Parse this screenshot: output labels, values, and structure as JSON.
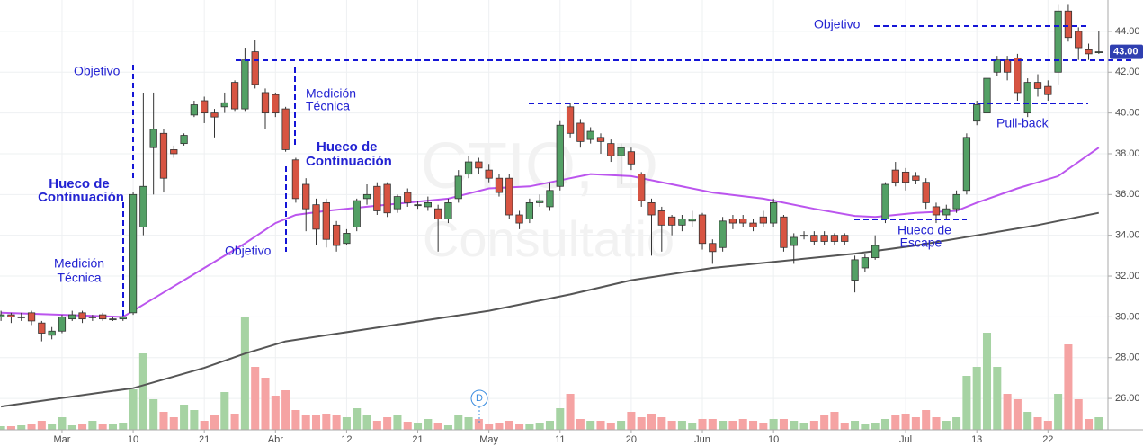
{
  "chart_data": {
    "type": "candlestick",
    "xlim": [
      -0.1,
      108.9
    ],
    "ylim": [
      24.46,
      45.54
    ],
    "grid": true,
    "xticks": [
      {
        "value": 6,
        "label": "Mar"
      },
      {
        "value": 13,
        "label": "10"
      },
      {
        "value": 20,
        "label": "21"
      },
      {
        "value": 27,
        "label": "Abr"
      },
      {
        "value": 34,
        "label": "12"
      },
      {
        "value": 41,
        "label": "21"
      },
      {
        "value": 48,
        "label": "May"
      },
      {
        "value": 55,
        "label": "11"
      },
      {
        "value": 62,
        "label": "20"
      },
      {
        "value": 69,
        "label": "Jun"
      },
      {
        "value": 76,
        "label": "10"
      },
      {
        "value": 89,
        "label": "Jul"
      },
      {
        "value": 96,
        "label": "13"
      },
      {
        "value": 103,
        "label": "22"
      }
    ],
    "yticks": [
      {
        "value": 26,
        "label": "26.00"
      },
      {
        "value": 28,
        "label": "28.00"
      },
      {
        "value": 30,
        "label": "30.00"
      },
      {
        "value": 32,
        "label": "32.00"
      },
      {
        "value": 34,
        "label": "34.00"
      },
      {
        "value": 36,
        "label": "36.00"
      },
      {
        "value": 38,
        "label": "38.00"
      },
      {
        "value": 40,
        "label": "40.00"
      },
      {
        "value": 42,
        "label": "42.00"
      },
      {
        "value": 44,
        "label": "44.00"
      }
    ],
    "last_price_label": "43.00",
    "up_color": "#53a065",
    "down_color": "#d75442",
    "volume_up_color": "#a6d3a3",
    "volume_down_color": "#f5a3a3",
    "open": [
      30.0,
      30.1,
      30.0,
      30.2,
      29.7,
      29.1,
      29.3,
      29.9,
      30.2,
      30.0,
      30.1,
      29.9,
      29.9,
      30.2,
      34.4,
      38.3,
      39.0,
      38.2,
      38.5,
      39.9,
      40.6,
      40.0,
      40.3,
      41.5,
      40.2,
      43.0,
      41.0,
      40.9,
      40.2,
      37.7,
      36.5,
      35.5,
      35.6,
      34.5,
      33.6,
      34.4,
      35.8,
      36.4,
      36.5,
      35.3,
      36.1,
      35.5,
      35.4,
      35.3,
      34.8,
      35.8,
      37.0,
      37.6,
      37.2,
      36.8,
      36.8,
      35.0,
      34.8,
      35.6,
      35.4,
      36.4,
      40.3,
      39.5,
      38.7,
      38.8,
      38.5,
      37.9,
      38.1,
      37.0,
      35.6,
      35.2,
      34.9,
      34.5,
      34.7,
      35.0,
      33.6,
      33.4,
      34.8,
      34.8,
      34.6,
      34.9,
      34.6,
      34.9,
      33.5,
      34.0,
      34.0,
      34.0,
      34.0,
      34.0,
      31.8,
      32.4,
      32.9,
      34.8,
      37.2,
      37.1,
      36.9,
      36.6,
      35.4,
      35.0,
      35.3,
      36.2,
      39.6,
      40.0,
      42.0,
      42.6,
      42.7,
      40.0,
      41.5,
      41.3,
      42.0,
      45.0,
      44.0,
      43.1,
      43.0
    ],
    "high": [
      30.3,
      30.2,
      30.2,
      30.3,
      29.8,
      29.5,
      30.1,
      30.3,
      30.3,
      30.1,
      30.2,
      30.0,
      30.1,
      36.1,
      41.0,
      41.0,
      39.2,
      38.4,
      39.0,
      40.6,
      40.8,
      40.2,
      41.0,
      41.6,
      43.2,
      43.6,
      41.2,
      41.0,
      40.3,
      37.8,
      36.8,
      35.8,
      35.8,
      34.7,
      34.3,
      35.8,
      36.5,
      36.6,
      36.6,
      36.0,
      36.3,
      35.7,
      35.9,
      35.5,
      35.8,
      37.2,
      37.9,
      37.8,
      37.5,
      37.0,
      37.0,
      35.2,
      35.8,
      36.0,
      36.6,
      39.6,
      40.5,
      39.7,
      39.3,
      39.0,
      38.7,
      38.5,
      38.3,
      37.1,
      35.8,
      35.4,
      35.0,
      35.0,
      35.2,
      35.1,
      33.8,
      34.9,
      35.0,
      35.0,
      34.8,
      35.2,
      35.8,
      35.0,
      34.1,
      34.2,
      34.2,
      34.2,
      34.1,
      34.1,
      33.0,
      33.1,
      34.0,
      36.6,
      37.6,
      37.3,
      37.1,
      36.8,
      35.6,
      35.5,
      36.2,
      39.0,
      40.6,
      41.9,
      42.8,
      42.8,
      42.9,
      41.7,
      41.9,
      41.6,
      45.3,
      45.3,
      44.2,
      43.4,
      44.0
    ],
    "low": [
      29.8,
      29.7,
      29.8,
      29.6,
      28.8,
      28.9,
      29.2,
      29.8,
      29.7,
      29.8,
      29.8,
      29.8,
      29.8,
      30.1,
      34.0,
      36.0,
      36.1,
      37.8,
      38.4,
      39.8,
      39.5,
      38.8,
      40.0,
      40.1,
      40.1,
      41.2,
      39.2,
      39.8,
      38.1,
      35.6,
      34.2,
      33.5,
      33.4,
      33.2,
      33.5,
      34.2,
      35.5,
      35.0,
      34.9,
      35.1,
      35.4,
      35.3,
      35.2,
      33.2,
      34.6,
      35.6,
      36.8,
      37.0,
      36.6,
      35.9,
      34.8,
      34.3,
      34.6,
      35.4,
      35.2,
      36.2,
      38.8,
      38.3,
      38.5,
      38.0,
      37.6,
      36.5,
      37.2,
      35.4,
      33.0,
      33.2,
      34.0,
      34.2,
      34.4,
      33.3,
      32.6,
      33.2,
      34.3,
      34.4,
      34.2,
      34.4,
      34.4,
      33.2,
      32.6,
      33.8,
      33.5,
      33.5,
      33.5,
      33.5,
      31.2,
      32.2,
      32.8,
      34.6,
      36.4,
      36.2,
      36.5,
      35.3,
      34.6,
      34.8,
      35.1,
      36.0,
      39.4,
      39.8,
      41.8,
      41.6,
      40.6,
      39.8,
      40.8,
      40.6,
      41.4,
      43.5,
      42.6,
      42.6,
      42.9
    ],
    "close": [
      30.1,
      30.0,
      30.0,
      29.8,
      29.2,
      29.3,
      30.0,
      30.1,
      29.9,
      30.0,
      29.9,
      29.9,
      30.0,
      36.0,
      36.4,
      39.2,
      36.8,
      38.0,
      38.9,
      40.4,
      40.0,
      39.8,
      40.5,
      40.2,
      42.6,
      41.4,
      40.0,
      40.0,
      38.2,
      35.8,
      35.3,
      34.3,
      33.8,
      33.5,
      34.1,
      35.7,
      36.0,
      35.2,
      35.1,
      35.9,
      35.6,
      35.5,
      35.6,
      34.8,
      35.6,
      36.9,
      37.6,
      37.3,
      36.8,
      36.1,
      35.0,
      34.6,
      35.6,
      35.7,
      36.2,
      39.4,
      39.0,
      38.6,
      39.1,
      38.6,
      37.9,
      38.3,
      37.5,
      35.7,
      35.0,
      34.5,
      34.5,
      34.8,
      34.8,
      33.6,
      33.2,
      34.7,
      34.6,
      34.6,
      34.4,
      34.6,
      35.6,
      33.4,
      33.9,
      34.0,
      33.7,
      33.7,
      33.7,
      33.7,
      32.8,
      32.9,
      33.5,
      36.5,
      36.6,
      36.6,
      36.7,
      35.6,
      35.0,
      35.3,
      36.0,
      38.8,
      40.4,
      41.7,
      42.6,
      42.0,
      41.0,
      41.5,
      41.2,
      40.9,
      45.0,
      43.7,
      43.2,
      42.9,
      43.0
    ],
    "volume": [
      4,
      4,
      5,
      6,
      10,
      6,
      14,
      5,
      6,
      10,
      6,
      6,
      8,
      45,
      85,
      34,
      20,
      14,
      28,
      22,
      10,
      16,
      42,
      18,
      125,
      70,
      58,
      38,
      44,
      22,
      16,
      16,
      18,
      16,
      14,
      24,
      16,
      10,
      14,
      16,
      9,
      8,
      12,
      8,
      5,
      16,
      14,
      12,
      6,
      8,
      10,
      6,
      7,
      8,
      10,
      24,
      40,
      12,
      10,
      10,
      8,
      10,
      20,
      14,
      18,
      14,
      10,
      10,
      8,
      12,
      12,
      10,
      10,
      12,
      10,
      8,
      12,
      12,
      10,
      8,
      10,
      16,
      20,
      8,
      10,
      6,
      8,
      12,
      16,
      18,
      14,
      22,
      14,
      10,
      14,
      60,
      70,
      108,
      70,
      40,
      34,
      20,
      14,
      10,
      40,
      95,
      34,
      12,
      14
    ],
    "moving_averages": [
      {
        "color": "#bb55ee",
        "x": [
          0,
          12,
          13,
          14,
          16,
          20,
          24,
          27,
          29,
          32,
          36,
          40,
          44,
          48,
          52,
          56,
          58,
          62,
          66,
          70,
          75,
          80,
          84,
          86,
          90,
          94,
          96,
          100,
          104,
          108
        ],
        "values": [
          30.2,
          30.0,
          30.3,
          30.6,
          31.2,
          32.4,
          33.6,
          34.6,
          35.0,
          35.2,
          35.4,
          35.6,
          35.8,
          36.3,
          36.4,
          36.8,
          37.0,
          36.9,
          36.5,
          36.1,
          35.8,
          35.3,
          34.95,
          34.9,
          35.1,
          35.2,
          35.6,
          36.3,
          36.9,
          38.3
        ]
      },
      {
        "color": "#555555",
        "x": [
          0,
          10,
          13,
          20,
          24,
          28,
          36,
          48,
          56,
          62,
          70,
          76,
          84,
          90,
          96,
          102,
          108
        ],
        "values": [
          25.6,
          26.3,
          26.5,
          27.5,
          28.2,
          28.8,
          29.4,
          30.3,
          31.1,
          31.8,
          32.4,
          32.7,
          33.1,
          33.5,
          34.0,
          34.5,
          35.1
        ]
      }
    ],
    "event_marker": "D",
    "watermark": [
      "CTIO, D",
      "Consultatio"
    ],
    "annotations": [
      {
        "lines": [
          "Objetivo"
        ]
      },
      {
        "lines": [
          "Hueco de",
          "Continuación"
        ]
      },
      {
        "lines": [
          "Medición",
          "Técnica"
        ]
      },
      {
        "lines": [
          "Medición",
          "Técnica"
        ]
      },
      {
        "lines": [
          "Hueco de",
          "Continuación"
        ]
      },
      {
        "lines": [
          "Objetivo"
        ]
      },
      {
        "lines": [
          "Objetivo"
        ]
      },
      {
        "lines": [
          "Pull-back"
        ]
      },
      {
        "lines": [
          "Hueco de",
          "Escape"
        ]
      }
    ]
  }
}
